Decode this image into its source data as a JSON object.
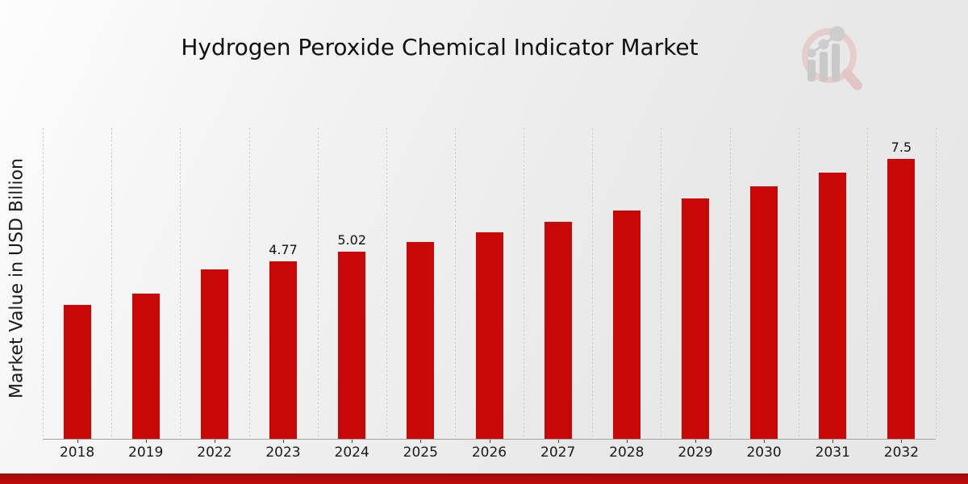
{
  "header": {
    "title": "Hydrogen Peroxide Chemical Indicator Market"
  },
  "chart_data": {
    "type": "bar",
    "title": "Hydrogen Peroxide Chemical Indicator Market",
    "xlabel": "",
    "ylabel": "Market Value in USD Billion",
    "categories": [
      "2018",
      "2019",
      "2022",
      "2023",
      "2024",
      "2025",
      "2026",
      "2027",
      "2028",
      "2029",
      "2030",
      "2031",
      "2032"
    ],
    "values": [
      3.61,
      3.9,
      4.56,
      4.77,
      5.02,
      5.28,
      5.55,
      5.83,
      6.13,
      6.45,
      6.78,
      7.13,
      7.5
    ],
    "data_labels": {
      "2023": "4.77",
      "2024": "5.02",
      "2032": "7.5"
    },
    "ylim": [
      0,
      8.3
    ],
    "grid": "vertical-dashed",
    "legend_position": "none",
    "bar_color": "#c90707",
    "grid_color": "#c6c6c6",
    "axis_color": "#a3a3a3"
  },
  "footer": {
    "accent_color": "#b00b0b"
  },
  "logo": {
    "name": "market-research-magnifier-logo",
    "ring_color": "#e6cdcd",
    "handle_color": "#e2c6c6",
    "bars_color": "#c9c9c9"
  }
}
